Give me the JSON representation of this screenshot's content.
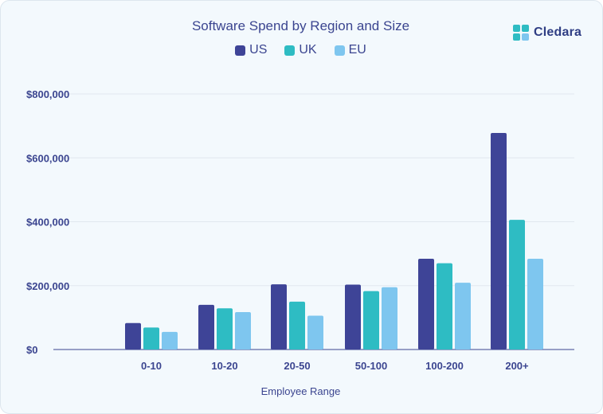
{
  "chart_data": {
    "type": "bar",
    "title": "Software Spend by Region and Size",
    "xlabel": "Employee Range",
    "ylabel": "",
    "categories": [
      "0-10",
      "10-20",
      "20-50",
      "50-100",
      "100-200",
      "200+"
    ],
    "series": [
      {
        "name": "US",
        "color": "#3e4497",
        "values": [
          83000,
          140000,
          204000,
          203000,
          284000,
          678000
        ]
      },
      {
        "name": "UK",
        "color": "#2ebcc3",
        "values": [
          69000,
          129000,
          150000,
          183000,
          270000,
          406000
        ]
      },
      {
        "name": "EU",
        "color": "#7ec6ef",
        "values": [
          55000,
          117000,
          106000,
          195000,
          209000,
          284000
        ]
      }
    ],
    "ylim": [
      0,
      800000
    ],
    "yticks": [
      {
        "value": 0,
        "label": "$0"
      },
      {
        "value": 200000,
        "label": "$200,000"
      },
      {
        "value": 400000,
        "label": "$400,000"
      },
      {
        "value": 600000,
        "label": "$600,000"
      },
      {
        "value": 800000,
        "label": "$800,000"
      }
    ],
    "grid": true,
    "legend_position": "top-center"
  },
  "brand": {
    "name": "Cledara",
    "logo_icon": "cledara-logo-icon",
    "logo_color": "#2ebcc3",
    "text_color": "#2f3e84"
  },
  "colors": {
    "background": "#f3f9fd",
    "text": "#3b4590",
    "grid": "#e1e8ef",
    "axis": "#3b4590"
  }
}
